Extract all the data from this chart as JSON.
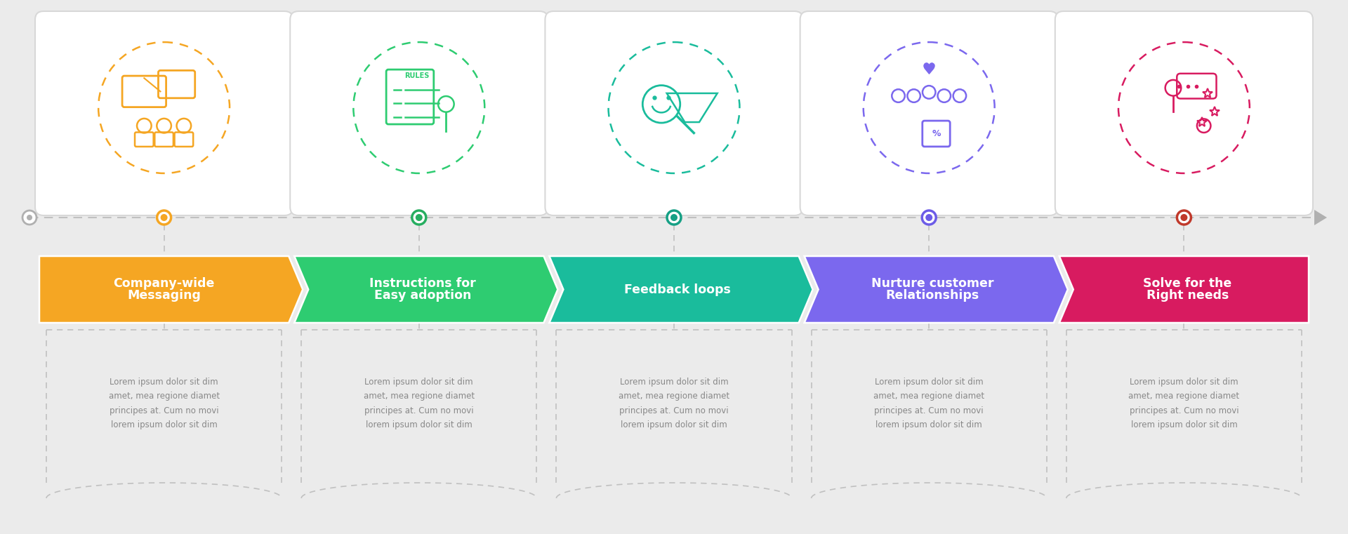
{
  "background_color": "#ebebeb",
  "steps": [
    {
      "title": "Company-wide\nMessaging",
      "color": "#F5A623",
      "dot_color": "#F5A623"
    },
    {
      "title": "Instructions for\nEasy adoption",
      "color": "#2ECC71",
      "dot_color": "#27AE60"
    },
    {
      "title": "Feedback loops",
      "color": "#1ABC9C",
      "dot_color": "#16A085"
    },
    {
      "title": "Nurture customer\nRelationships",
      "color": "#7B68EE",
      "dot_color": "#6C5CE7"
    },
    {
      "title": "Solve for the\nRight needs",
      "color": "#D81B60",
      "dot_color": "#C0392B"
    }
  ],
  "lorem_text": "Lorem ipsum dolor sit dim\namet, mea regione diamet\nprincipes at. Cum no movi\nlorem ipsum dolor sit dim",
  "title_fontsize": 12.5,
  "body_fontsize": 8.5,
  "fig_width": 19.2,
  "fig_height": 7.61
}
